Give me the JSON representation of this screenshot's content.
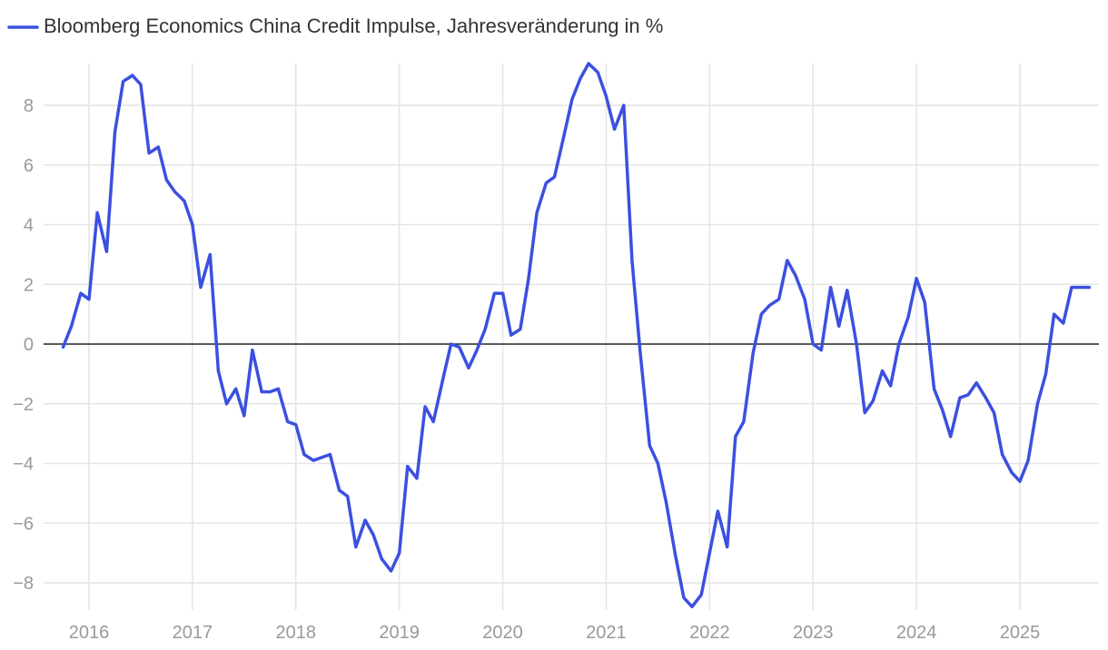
{
  "legend": {
    "label": "Bloomberg Economics China Credit Impulse, Jahresveränderung in %",
    "color": "#3b50e0"
  },
  "chart_data": {
    "type": "line",
    "ylim": [
      -8.8,
      9.6
    ],
    "yticks": [
      -8,
      -6,
      -4,
      -2,
      0,
      2,
      4,
      6,
      8
    ],
    "ytick_labels": [
      "−8",
      "−6",
      "−4",
      "−2",
      "0",
      "2",
      "4",
      "6",
      "8"
    ],
    "xlim": [
      2015.55,
      2025.78
    ],
    "xticks": [
      2016,
      2017,
      2018,
      2019,
      2020,
      2021,
      2022,
      2023,
      2024,
      2025
    ],
    "xtick_labels": [
      "2016",
      "2017",
      "2018",
      "2019",
      "2020",
      "2021",
      "2022",
      "2023",
      "2024",
      "2025"
    ],
    "grid": true,
    "series": [
      {
        "name": "Bloomberg Economics China Credit Impulse, Jahresveränderung in %",
        "color": "#3b50e0",
        "x": [
          2015.75,
          2015.83,
          2015.92,
          2016.0,
          2016.08,
          2016.17,
          2016.25,
          2016.33,
          2016.42,
          2016.5,
          2016.58,
          2016.67,
          2016.75,
          2016.83,
          2016.92,
          2017.0,
          2017.08,
          2017.17,
          2017.25,
          2017.33,
          2017.42,
          2017.5,
          2017.58,
          2017.67,
          2017.75,
          2017.83,
          2017.92,
          2018.0,
          2018.08,
          2018.17,
          2018.25,
          2018.33,
          2018.42,
          2018.5,
          2018.58,
          2018.67,
          2018.75,
          2018.83,
          2018.92,
          2019.0,
          2019.08,
          2019.17,
          2019.25,
          2019.33,
          2019.42,
          2019.5,
          2019.58,
          2019.67,
          2019.75,
          2019.83,
          2019.92,
          2020.0,
          2020.08,
          2020.17,
          2020.25,
          2020.33,
          2020.42,
          2020.5,
          2020.58,
          2020.67,
          2020.75,
          2020.83,
          2020.92,
          2021.0,
          2021.08,
          2021.17,
          2021.25,
          2021.33,
          2021.42,
          2021.5,
          2021.58,
          2021.67,
          2021.75,
          2021.83,
          2021.92,
          2022.0,
          2022.08,
          2022.17,
          2022.25,
          2022.33,
          2022.42,
          2022.5,
          2022.58,
          2022.67,
          2022.75,
          2022.83,
          2022.92,
          2023.0,
          2023.08,
          2023.17,
          2023.25,
          2023.33,
          2023.42,
          2023.5,
          2023.58,
          2023.67,
          2023.75,
          2023.83,
          2023.92,
          2024.0,
          2024.08,
          2024.17,
          2024.25,
          2024.33,
          2024.42,
          2024.5,
          2024.58,
          2024.67,
          2024.75,
          2024.83,
          2024.92,
          2025.0,
          2025.08,
          2025.17,
          2025.25,
          2025.33,
          2025.42,
          2025.5,
          2025.58,
          2025.67
        ],
        "values": [
          -0.1,
          0.6,
          1.7,
          1.5,
          4.4,
          3.1,
          7.1,
          8.8,
          9.0,
          8.7,
          6.4,
          6.6,
          5.5,
          5.1,
          4.8,
          4.0,
          1.9,
          3.0,
          -0.9,
          -2.0,
          -1.5,
          -2.4,
          -0.2,
          -1.6,
          -1.6,
          -1.5,
          -2.6,
          -2.7,
          -3.7,
          -3.9,
          -3.8,
          -3.7,
          -4.9,
          -5.1,
          -6.8,
          -5.9,
          -6.4,
          -7.2,
          -7.6,
          -7.0,
          -4.1,
          -4.5,
          -2.1,
          -2.6,
          -1.2,
          0.0,
          -0.1,
          -0.8,
          -0.2,
          0.5,
          1.7,
          1.7,
          0.3,
          0.5,
          2.2,
          4.4,
          5.4,
          5.6,
          6.8,
          8.2,
          8.9,
          9.4,
          9.1,
          8.3,
          7.2,
          8.0,
          2.8,
          -0.3,
          -3.4,
          -4.0,
          -5.3,
          -7.1,
          -8.5,
          -8.8,
          -8.4,
          -7.0,
          -5.6,
          -6.8,
          -3.1,
          -2.6,
          -0.3,
          1.0,
          1.3,
          1.5,
          2.8,
          2.3,
          1.5,
          0.0,
          -0.2,
          1.9,
          0.6,
          1.8,
          0.0,
          -2.3,
          -1.9,
          -0.9,
          -1.4,
          0.0,
          0.9,
          2.2,
          1.4,
          -1.5,
          -2.2,
          -3.1,
          -1.8,
          -1.7,
          -1.3,
          -1.8,
          -2.3,
          -3.7,
          -4.3,
          -4.6,
          -3.9,
          -2.0,
          -1.0,
          1.0,
          0.7,
          1.9,
          1.9,
          1.9
        ]
      }
    ]
  }
}
